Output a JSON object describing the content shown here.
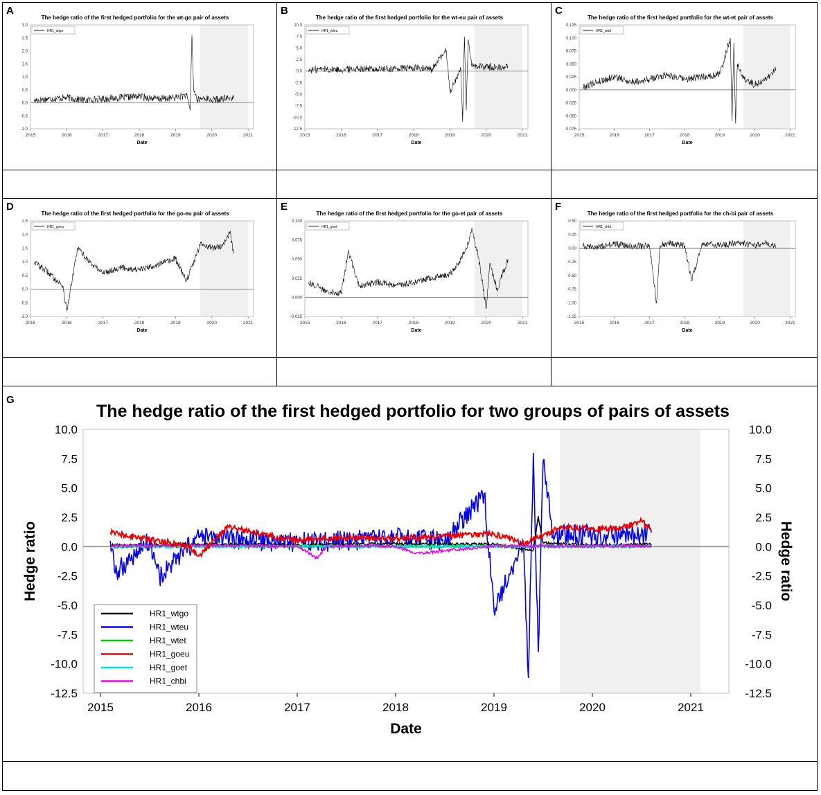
{
  "panels": [
    {
      "id": "A",
      "title": "The hedge ratio of the first hedged portfolio for the wt-go pair of assets",
      "legend": "HR1_wtgo",
      "xlabel": "Date",
      "yticks": [
        "3.0",
        "2.5",
        "2.0",
        "1.5",
        "1.0",
        "0.5",
        "0.0",
        "-0.5",
        "-1.0"
      ]
    },
    {
      "id": "B",
      "title": "The hedge ratio of the first hedged portfolio for the wt-eu pair of assets",
      "legend": "HR1_wteu",
      "xlabel": "Date",
      "yticks": [
        "10.0",
        "7.5",
        "5.0",
        "2.5",
        "0.0",
        "-2.5",
        "-5.0",
        "-7.5",
        "-10.0",
        "-12.5"
      ]
    },
    {
      "id": "C",
      "title": "The hedge ratio of the first hedged portfolio for the wt-et pair of assets",
      "legend": "HR1_wtet",
      "xlabel": "Date",
      "yticks": [
        "0.125",
        "0.100",
        "0.075",
        "0.050",
        "0.025",
        "0.000",
        "-0.025",
        "-0.050",
        "-0.075"
      ]
    },
    {
      "id": "D",
      "title": "The hedge ratio of the first hedged portfolio for the go-eu pair of assets",
      "legend": "HR1_goeu",
      "xlabel": "Date",
      "yticks": [
        "2.5",
        "2.0",
        "1.5",
        "1.0",
        "0.5",
        "0.0",
        "-0.5",
        "-1.0"
      ]
    },
    {
      "id": "E",
      "title": "The hedge ratio of the first hedged portfolio for the go-et pair of assets",
      "legend": "HR1_goet",
      "xlabel": "Date",
      "yticks": [
        "0.100",
        "0.075",
        "0.050",
        "0.025",
        "0.000",
        "-0.025"
      ]
    },
    {
      "id": "F",
      "title": "The hedge ratio of the first hedged portfolio for the ch-bi pair of assets",
      "legend": "HR1_chbi",
      "xlabel": "Date",
      "yticks": [
        "0.50",
        "0.25",
        "0.00",
        "-0.25",
        "-0.50",
        "-0.75",
        "-1.00",
        "-1.25"
      ]
    }
  ],
  "xticks": [
    "2015",
    "2016",
    "2017",
    "2018",
    "2019",
    "2020",
    "2021"
  ],
  "main": {
    "id": "G",
    "title": "The hedge ratio of the first hedged portfolio for two groups of pairs of assets",
    "xlabel": "Date",
    "ylabel": "Hedge ratio",
    "yticks": [
      "10.0",
      "7.5",
      "5.0",
      "2.5",
      "0.0",
      "-2.5",
      "-5.0",
      "-7.5",
      "-10.0",
      "-12.5"
    ]
  },
  "chart_data": [
    {
      "type": "line",
      "panel": "A",
      "title": "The hedge ratio of the first hedged portfolio for the wt-go pair of assets",
      "xlabel": "Date",
      "ylim": [
        -1.0,
        3.0
      ],
      "xlim": [
        2015,
        2021
      ],
      "shaded_x": [
        2019.67,
        2021.0
      ],
      "series": [
        {
          "name": "HR1_wtgo",
          "color": "#000000",
          "x": [
            2015.1,
            2015.5,
            2016.0,
            2016.5,
            2017.0,
            2017.5,
            2018.0,
            2018.5,
            2019.0,
            2019.3,
            2019.4,
            2019.45,
            2019.5,
            2019.6,
            2019.8,
            2020.0,
            2020.3,
            2020.6
          ],
          "y": [
            0.1,
            0.15,
            0.2,
            0.1,
            0.15,
            0.2,
            0.25,
            0.15,
            0.2,
            0.3,
            -0.3,
            2.6,
            0.5,
            0.1,
            0.2,
            0.1,
            0.15,
            0.2
          ]
        }
      ]
    },
    {
      "type": "line",
      "panel": "B",
      "title": "The hedge ratio of the first hedged portfolio for the wt-eu pair of assets",
      "xlabel": "Date",
      "ylim": [
        -12.5,
        10.0
      ],
      "xlim": [
        2015,
        2021
      ],
      "shaded_x": [
        2019.67,
        2021.0
      ],
      "series": [
        {
          "name": "HR1_wteu",
          "color": "#000000",
          "x": [
            2015.1,
            2015.5,
            2016.0,
            2016.5,
            2017.0,
            2017.5,
            2018.0,
            2018.5,
            2018.9,
            2019.0,
            2019.3,
            2019.35,
            2019.4,
            2019.45,
            2019.5,
            2019.6,
            2020.0,
            2020.3,
            2020.6
          ],
          "y": [
            0.2,
            0.5,
            0.3,
            0.6,
            0.4,
            0.5,
            0.7,
            0.4,
            4.5,
            -4.5,
            0.5,
            -11.0,
            7.5,
            -8.5,
            6.8,
            1.0,
            1.0,
            0.8,
            1.0
          ]
        }
      ]
    },
    {
      "type": "line",
      "panel": "C",
      "title": "The hedge ratio of the first hedged portfolio for the wt-et pair of assets",
      "xlabel": "Date",
      "ylim": [
        -0.075,
        0.125
      ],
      "xlim": [
        2015,
        2021
      ],
      "shaded_x": [
        2019.67,
        2021.0
      ],
      "series": [
        {
          "name": "HR1_wtet",
          "color": "#000000",
          "x": [
            2015.1,
            2015.5,
            2016.0,
            2016.5,
            2017.0,
            2017.5,
            2018.0,
            2018.5,
            2019.0,
            2019.3,
            2019.35,
            2019.4,
            2019.45,
            2019.5,
            2019.7,
            2020.0,
            2020.3,
            2020.6
          ],
          "y": [
            0.005,
            0.015,
            0.025,
            0.015,
            0.02,
            0.03,
            0.02,
            0.025,
            0.03,
            0.1,
            -0.06,
            0.09,
            -0.065,
            0.05,
            0.02,
            0.01,
            0.02,
            0.04
          ]
        }
      ]
    },
    {
      "type": "line",
      "panel": "D",
      "title": "The hedge ratio of the first hedged portfolio for the go-eu pair of assets",
      "xlabel": "Date",
      "ylim": [
        -1.0,
        2.5
      ],
      "xlim": [
        2015,
        2021
      ],
      "shaded_x": [
        2019.67,
        2021.0
      ],
      "series": [
        {
          "name": "HR1_goeu",
          "color": "#000000",
          "x": [
            2015.1,
            2015.5,
            2015.9,
            2016.0,
            2016.3,
            2016.7,
            2017.0,
            2017.5,
            2018.0,
            2018.5,
            2019.0,
            2019.3,
            2019.5,
            2019.7,
            2020.0,
            2020.3,
            2020.5,
            2020.6
          ],
          "y": [
            1.0,
            0.6,
            0.1,
            -0.8,
            1.5,
            0.9,
            0.6,
            0.8,
            0.7,
            0.9,
            1.1,
            0.3,
            1.0,
            1.7,
            1.5,
            1.6,
            2.1,
            1.3
          ]
        }
      ]
    },
    {
      "type": "line",
      "panel": "E",
      "title": "The hedge ratio of the first hedged portfolio for the go-et pair of assets",
      "xlabel": "Date",
      "ylim": [
        -0.025,
        0.1
      ],
      "xlim": [
        2015,
        2021
      ],
      "shaded_x": [
        2019.67,
        2021.0
      ],
      "series": [
        {
          "name": "HR1_goet",
          "color": "#000000",
          "x": [
            2015.1,
            2015.5,
            2016.0,
            2016.2,
            2016.5,
            2017.0,
            2017.5,
            2018.0,
            2018.5,
            2019.0,
            2019.3,
            2019.5,
            2019.6,
            2019.8,
            2020.0,
            2020.1,
            2020.3,
            2020.6
          ],
          "y": [
            0.02,
            0.01,
            0.005,
            0.06,
            0.015,
            0.02,
            0.015,
            0.02,
            0.025,
            0.03,
            0.05,
            0.07,
            0.09,
            0.05,
            -0.015,
            0.045,
            0.01,
            0.05
          ]
        }
      ]
    },
    {
      "type": "line",
      "panel": "F",
      "title": "The hedge ratio of the first hedged portfolio for the ch-bi pair of assets",
      "xlabel": "Date",
      "ylim": [
        -1.25,
        0.5
      ],
      "xlim": [
        2015,
        2021
      ],
      "shaded_x": [
        2019.67,
        2021.0
      ],
      "series": [
        {
          "name": "HR1_chbi",
          "color": "#000000",
          "x": [
            2015.1,
            2015.5,
            2016.0,
            2016.5,
            2017.0,
            2017.2,
            2017.3,
            2017.5,
            2018.0,
            2018.2,
            2018.5,
            2019.0,
            2019.5,
            2020.0,
            2020.3,
            2020.6
          ],
          "y": [
            0.05,
            0.02,
            0.08,
            0.03,
            0.05,
            -1.0,
            0.05,
            0.1,
            0.05,
            -0.6,
            0.1,
            0.05,
            0.1,
            0.05,
            0.1,
            0.05
          ]
        }
      ]
    },
    {
      "type": "line",
      "panel": "G",
      "title": "The hedge ratio of the first hedged portfolio for two groups of pairs of assets",
      "xlabel": "Date",
      "ylabel": "Hedge ratio",
      "ylim": [
        -12.5,
        10.0
      ],
      "xlim": [
        2015,
        2021
      ],
      "shaded_x": [
        2019.67,
        2021.1
      ],
      "legend_position": "bottom-left",
      "series": [
        {
          "name": "HR1_wtgo",
          "color": "#000000",
          "x": [
            2015.1,
            2016.0,
            2017.0,
            2018.0,
            2019.0,
            2019.4,
            2019.45,
            2019.5,
            2020.0,
            2020.6
          ],
          "y": [
            0.1,
            0.2,
            0.15,
            0.25,
            0.2,
            -0.3,
            2.6,
            0.3,
            0.1,
            0.2
          ]
        },
        {
          "name": "HR1_wteu",
          "color": "#0000ee",
          "x": [
            2015.1,
            2015.15,
            2015.5,
            2015.6,
            2016.0,
            2016.5,
            2017.0,
            2017.5,
            2018.0,
            2018.5,
            2018.9,
            2019.0,
            2019.3,
            2019.35,
            2019.4,
            2019.45,
            2019.5,
            2019.6,
            2020.0,
            2020.3,
            2020.6
          ],
          "y": [
            0.5,
            -2.3,
            0.6,
            -2.6,
            0.8,
            0.5,
            0.4,
            0.5,
            0.7,
            0.4,
            4.5,
            -5.5,
            0.5,
            -11.2,
            8.0,
            -9.0,
            7.3,
            1.0,
            1.0,
            0.8,
            1.2
          ]
        },
        {
          "name": "HR1_wtet",
          "color": "#00cc00",
          "x": [
            2015.1,
            2016.0,
            2017.0,
            2018.0,
            2019.0,
            2020.0,
            2020.6
          ],
          "y": [
            0.0,
            0.02,
            0.02,
            0.02,
            0.03,
            0.01,
            0.04
          ]
        },
        {
          "name": "HR1_goeu",
          "color": "#ee0000",
          "x": [
            2015.1,
            2015.5,
            2015.9,
            2016.0,
            2016.3,
            2016.7,
            2017.0,
            2017.5,
            2018.0,
            2018.5,
            2019.0,
            2019.3,
            2019.5,
            2019.7,
            2020.0,
            2020.3,
            2020.5,
            2020.6
          ],
          "y": [
            1.2,
            0.6,
            0.1,
            -0.8,
            1.7,
            0.9,
            0.6,
            0.8,
            0.7,
            0.9,
            1.1,
            0.3,
            1.0,
            1.7,
            1.5,
            1.6,
            2.2,
            1.4
          ]
        },
        {
          "name": "HR1_goet",
          "color": "#00e5ee",
          "x": [
            2015.1,
            2016.0,
            2017.0,
            2018.0,
            2019.0,
            2020.0,
            2020.6
          ],
          "y": [
            0.02,
            0.01,
            0.02,
            0.02,
            0.03,
            0.02,
            0.05
          ]
        },
        {
          "name": "HR1_chbi",
          "color": "#ee00ee",
          "x": [
            2015.1,
            2016.0,
            2017.0,
            2017.2,
            2017.3,
            2018.0,
            2018.2,
            2019.0,
            2020.0,
            2020.6
          ],
          "y": [
            0.05,
            0.08,
            0.05,
            -1.0,
            0.05,
            0.05,
            -0.6,
            0.05,
            0.05,
            0.05
          ]
        }
      ]
    }
  ]
}
